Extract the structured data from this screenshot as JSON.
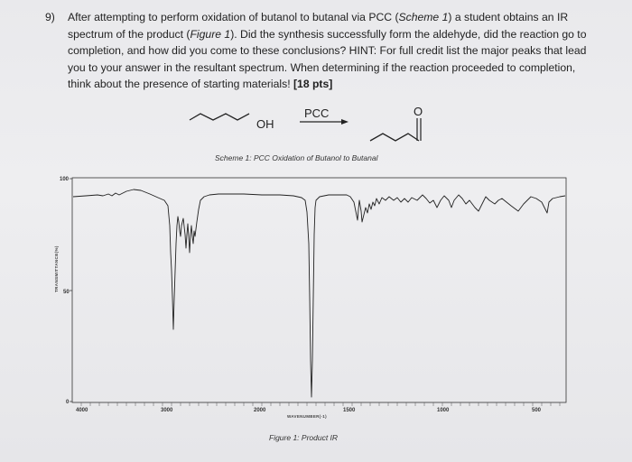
{
  "question": {
    "number": "9)",
    "text_1": "After attempting to perform oxidation of butanol to butanal via PCC (",
    "ref_scheme": "Scheme 1",
    "text_2": ") a student obtains an IR spectrum of the product (",
    "ref_figure": "Figure 1",
    "text_3": "). Did the synthesis successfully form the aldehyde, did the reaction go to completion, and how did you come to these conclusions? HINT: For full credit list the major peaks that lead you to your answer in the resultant spectrum. When determining if the reaction proceeded to completion, think about the presence of starting materials! ",
    "points": "[18 pts]"
  },
  "scheme": {
    "reactant_label": "OH",
    "reagent_label": "PCC",
    "product_label": "O",
    "caption": "Scheme 1: PCC Oxidation of Butanol to Butanal"
  },
  "spectrum": {
    "y_ticks": [
      "100",
      "50",
      "0"
    ],
    "x_ticks": [
      "4000",
      "3000",
      "2000",
      "1500",
      "1000",
      "500"
    ],
    "y_axis_label": "TRANSMITTANCE(%)",
    "x_axis_label": "WAVENUMBER(-1)",
    "caption": "Figure 1: Product IR"
  }
}
